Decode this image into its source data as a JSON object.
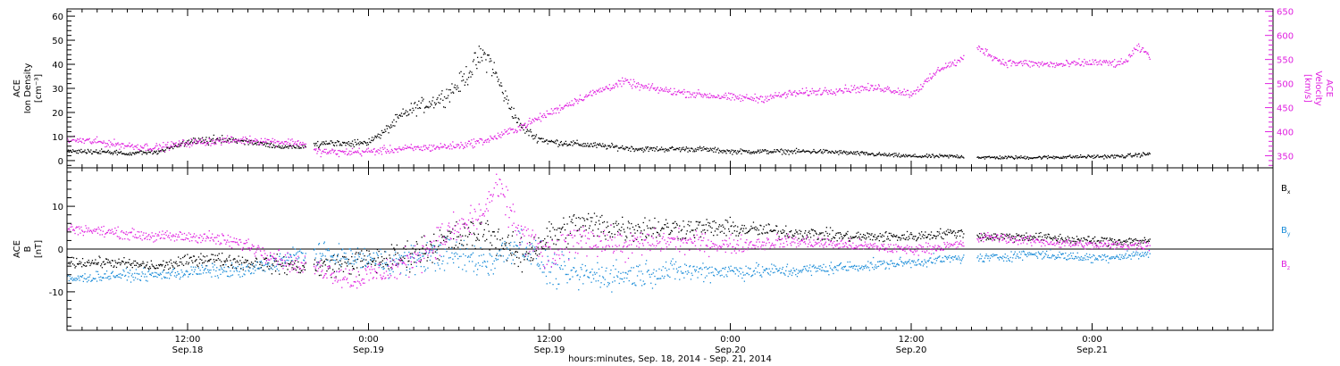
{
  "colors": {
    "black": "#000000",
    "magenta": "#e020e0",
    "blue": "#1a8cd8"
  },
  "footer": {
    "xlabel": "hours:minutes, Sep. 18, 2014 - Sep. 21, 2014"
  },
  "chart_data": [
    {
      "type": "scatter",
      "panel": "top",
      "ylabel_left": [
        "ACE",
        "Ion Density",
        "[cm⁻³]"
      ],
      "ylabel_right": [
        "ACE",
        "Velocity",
        "[km/s]"
      ],
      "xlim": [
        "2014-09-18 04:00",
        "2014-09-21 12:00"
      ],
      "ylim_left": [
        -3,
        63
      ],
      "ylim_right": [
        325,
        655
      ],
      "yticks_left": [
        0,
        10,
        20,
        30,
        40,
        50,
        60
      ],
      "yticks_right": [
        350,
        400,
        450,
        500,
        550,
        600,
        650
      ],
      "x_tick_labels": [
        {
          "time": "2014-09-18 12:00",
          "line1": "12:00",
          "line2": "Sep.18"
        },
        {
          "time": "2014-09-19 00:00",
          "line1": "0:00",
          "line2": "Sep.19"
        },
        {
          "time": "2014-09-19 12:00",
          "line1": "12:00",
          "line2": "Sep.19"
        },
        {
          "time": "2014-09-20 00:00",
          "line1": "0:00",
          "line2": "Sep.20"
        },
        {
          "time": "2014-09-20 12:00",
          "line1": "12:00",
          "line2": "Sep.20"
        },
        {
          "time": "2014-09-21 00:00",
          "line1": "0:00",
          "line2": "Sep.21"
        }
      ],
      "data_gaps": [
        [
          "2014-09-18 19:50",
          "2014-09-18 20:20"
        ],
        [
          "2014-09-20 15:30",
          "2014-09-20 16:20"
        ]
      ],
      "data_end": "2014-09-21 03:50",
      "series": [
        {
          "axis": "left",
          "color": "#000000",
          "x": [
            "2014-09-18 04:00",
            "2014-09-18 06:00",
            "2014-09-18 08:00",
            "2014-09-18 10:00",
            "2014-09-18 12:00",
            "2014-09-18 14:00",
            "2014-09-18 16:00",
            "2014-09-18 18:00",
            "2014-09-18 19:30",
            "2014-09-18 20:30",
            "2014-09-18 21:30",
            "2014-09-18 22:30",
            "2014-09-19 00:00",
            "2014-09-19 01:00",
            "2014-09-19 02:00",
            "2014-09-19 03:00",
            "2014-09-19 04:00",
            "2014-09-19 05:00",
            "2014-09-19 06:00",
            "2014-09-19 07:00",
            "2014-09-19 07:30",
            "2014-09-19 08:00",
            "2014-09-19 09:00",
            "2014-09-19 10:00",
            "2014-09-19 11:00",
            "2014-09-19 12:00",
            "2014-09-19 14:00",
            "2014-09-19 16:00",
            "2014-09-19 18:00",
            "2014-09-19 20:00",
            "2014-09-19 22:00",
            "2014-09-20 00:00",
            "2014-09-20 03:00",
            "2014-09-20 06:00",
            "2014-09-20 09:00",
            "2014-09-20 12:00",
            "2014-09-20 15:00",
            "2014-09-20 17:00",
            "2014-09-20 20:00",
            "2014-09-20 23:00",
            "2014-09-21 02:00",
            "2014-09-21 03:50"
          ],
          "y": [
            4,
            4,
            3,
            4,
            8,
            9,
            8,
            6,
            6,
            7,
            8,
            7,
            8,
            12,
            18,
            22,
            24,
            27,
            32,
            40,
            44,
            42,
            27,
            15,
            10,
            8,
            7,
            6,
            5,
            5,
            5,
            4,
            4,
            4,
            3,
            2,
            2,
            1.5,
            1.5,
            1.8,
            2,
            3
          ]
        },
        {
          "axis": "right",
          "color": "#e020e0",
          "x": [
            "2014-09-18 04:00",
            "2014-09-18 06:00",
            "2014-09-18 08:00",
            "2014-09-18 10:00",
            "2014-09-18 12:00",
            "2014-09-18 14:00",
            "2014-09-18 16:00",
            "2014-09-18 18:00",
            "2014-09-18 19:30",
            "2014-09-18 20:30",
            "2014-09-18 22:00",
            "2014-09-19 00:00",
            "2014-09-19 02:00",
            "2014-09-19 04:00",
            "2014-09-19 06:00",
            "2014-09-19 08:00",
            "2014-09-19 10:00",
            "2014-09-19 12:00",
            "2014-09-19 14:00",
            "2014-09-19 16:00",
            "2014-09-19 17:00",
            "2014-09-19 18:00",
            "2014-09-19 20:00",
            "2014-09-19 22:00",
            "2014-09-20 00:00",
            "2014-09-20 02:00",
            "2014-09-20 04:00",
            "2014-09-20 06:00",
            "2014-09-20 08:00",
            "2014-09-20 10:00",
            "2014-09-20 12:00",
            "2014-09-20 13:00",
            "2014-09-20 14:00",
            "2014-09-20 15:00",
            "2014-09-20 16:30",
            "2014-09-20 18:00",
            "2014-09-20 20:00",
            "2014-09-20 22:00",
            "2014-09-21 00:00",
            "2014-09-21 02:00",
            "2014-09-21 03:00",
            "2014-09-21 03:50"
          ],
          "y": [
            385,
            380,
            372,
            368,
            378,
            382,
            384,
            380,
            378,
            360,
            358,
            360,
            365,
            368,
            372,
            385,
            410,
            440,
            470,
            495,
            505,
            495,
            485,
            478,
            472,
            470,
            480,
            485,
            490,
            492,
            480,
            505,
            535,
            545,
            575,
            545,
            542,
            540,
            545,
            542,
            575,
            560
          ]
        }
      ]
    },
    {
      "type": "scatter",
      "panel": "bottom",
      "ylabel_left": [
        "ACE",
        "B",
        "[nT]"
      ],
      "xlim": [
        "2014-09-18 04:00",
        "2014-09-21 12:00"
      ],
      "ylim": [
        -19,
        19
      ],
      "yticks": [
        -10,
        0,
        10
      ],
      "zero_line": true,
      "legend": [
        {
          "label": "B",
          "sub": "x",
          "color": "#000000"
        },
        {
          "label": "B",
          "sub": "y",
          "color": "#1a8cd8"
        },
        {
          "label": "B",
          "sub": "z",
          "color": "#e020e0"
        }
      ],
      "series": [
        {
          "name": "Bx",
          "color": "#000000",
          "x": [
            "2014-09-18 04:00",
            "2014-09-18 07:00",
            "2014-09-18 10:00",
            "2014-09-18 13:00",
            "2014-09-18 16:00",
            "2014-09-18 19:30",
            "2014-09-18 20:30",
            "2014-09-18 23:00",
            "2014-09-19 02:00",
            "2014-09-19 05:00",
            "2014-09-19 08:00",
            "2014-09-19 10:00",
            "2014-09-19 12:00",
            "2014-09-19 14:00",
            "2014-09-19 17:00",
            "2014-09-19 20:00",
            "2014-09-20 00:00",
            "2014-09-20 04:00",
            "2014-09-20 08:00",
            "2014-09-20 12:00",
            "2014-09-20 15:00",
            "2014-09-20 17:00",
            "2014-09-20 20:00",
            "2014-09-21 00:00",
            "2014-09-21 03:50"
          ],
          "y": [
            -3,
            -3,
            -4,
            -2,
            -3,
            -4,
            -4,
            -3,
            -2,
            2,
            4,
            -2,
            3,
            6,
            5,
            5,
            5,
            4,
            3,
            3,
            4,
            3,
            3,
            2,
            2
          ]
        },
        {
          "name": "By",
          "color": "#1a8cd8",
          "x": [
            "2014-09-18 04:00",
            "2014-09-18 07:00",
            "2014-09-18 10:00",
            "2014-09-18 13:00",
            "2014-09-18 16:00",
            "2014-09-18 19:30",
            "2014-09-18 20:30",
            "2014-09-18 23:00",
            "2014-09-19 02:00",
            "2014-09-19 05:00",
            "2014-09-19 08:00",
            "2014-09-19 10:00",
            "2014-09-19 12:00",
            "2014-09-19 14:00",
            "2014-09-19 17:00",
            "2014-09-19 20:00",
            "2014-09-20 00:00",
            "2014-09-20 04:00",
            "2014-09-20 08:00",
            "2014-09-20 12:00",
            "2014-09-20 15:00",
            "2014-09-20 17:00",
            "2014-09-20 20:00",
            "2014-09-21 00:00",
            "2014-09-21 03:50"
          ],
          "y": [
            -7,
            -6,
            -6,
            -5,
            -5,
            -1,
            -1,
            -2,
            -3,
            -1,
            -3,
            2,
            -5,
            -6,
            -6,
            -5,
            -5,
            -5,
            -4,
            -3,
            -2,
            -2,
            -1,
            -2,
            -1
          ]
        },
        {
          "name": "Bz",
          "color": "#e020e0",
          "x": [
            "2014-09-18 04:00",
            "2014-09-18 07:00",
            "2014-09-18 10:00",
            "2014-09-18 13:00",
            "2014-09-18 16:00",
            "2014-09-18 19:30",
            "2014-09-18 20:30",
            "2014-09-18 23:00",
            "2014-09-19 02:00",
            "2014-09-19 05:00",
            "2014-09-19 07:30",
            "2014-09-19 08:30",
            "2014-09-19 10:00",
            "2014-09-19 12:00",
            "2014-09-19 14:00",
            "2014-09-19 17:00",
            "2014-09-19 20:00",
            "2014-09-20 00:00",
            "2014-09-20 04:00",
            "2014-09-20 08:00",
            "2014-09-20 12:00",
            "2014-09-20 15:00",
            "2014-09-20 17:00",
            "2014-09-20 20:00",
            "2014-09-21 00:00",
            "2014-09-21 03:50"
          ],
          "y": [
            5,
            4,
            3,
            3,
            1,
            -4,
            -4,
            -7,
            -4,
            3,
            8,
            15,
            4,
            -2,
            3,
            1,
            2,
            1,
            2,
            1,
            0,
            1,
            3,
            2,
            1,
            1
          ]
        }
      ]
    }
  ]
}
